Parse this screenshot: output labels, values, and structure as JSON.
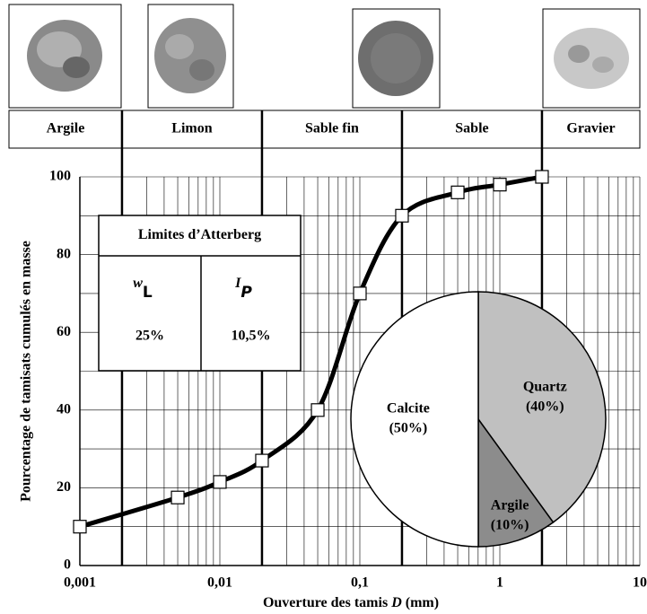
{
  "chart_data": {
    "type": "line",
    "ylabel": "Pourcentage de tamisats cumulés en masse",
    "xlabel": [
      "Ouverture des tamis ",
      "D",
      " (mm)"
    ],
    "x": [
      0.001,
      0.005,
      0.01,
      0.02,
      0.05,
      0.1,
      0.2,
      0.5,
      1,
      2
    ],
    "values": [
      10,
      17.5,
      21.5,
      27,
      40,
      70,
      90,
      96,
      98,
      100
    ],
    "color": "#000000",
    "log_x": true,
    "xlim": [
      0.001,
      10
    ],
    "xticks": [
      {
        "value": 0.001,
        "label": "0,001"
      },
      {
        "value": 0.01,
        "label": "0,01"
      },
      {
        "value": 0.1,
        "label": "0,1"
      },
      1,
      10
    ],
    "ylim": [
      0,
      100
    ],
    "yticks": [
      0,
      20,
      40,
      60,
      80,
      100
    ],
    "grid": true,
    "minor_grid": true,
    "classes": [
      "Argile",
      "Limon",
      "Sable fin",
      "Sable",
      "Gravier"
    ],
    "class_bounds": [
      0.002,
      0.02,
      0.2,
      2
    ],
    "pie": {
      "type": "pie",
      "categories": [
        "Quartz",
        "Argile",
        "Calcite"
      ],
      "values": [
        40,
        10,
        50
      ],
      "value_labels": [
        "(40%)",
        "(10%)",
        "(50%)"
      ],
      "colors": [
        "#c0c0c0",
        "#8c8c8c",
        "#ffffff"
      ]
    },
    "atterberg": {
      "title": "Limites d’Atterberg",
      "columns": [
        {
          "symbol": "w",
          "subscript": "L",
          "value": "25%"
        },
        {
          "symbol": "I",
          "subscript": "P",
          "value": "10,5%"
        }
      ]
    }
  }
}
